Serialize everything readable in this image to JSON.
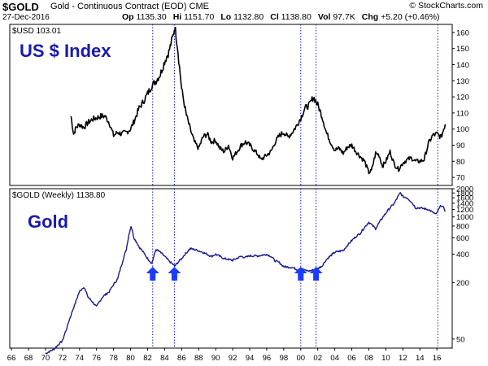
{
  "header": {
    "symbol": "$GOLD",
    "name": "Gold - Continuous Contract (EOD)",
    "exchange": "CME",
    "date": "27-Dec-2016",
    "credit": "© StockCharts.com",
    "quote": {
      "open_label": "Op",
      "open": "1135.30",
      "high_label": "Hi",
      "high": "1151.70",
      "low_label": "Lo",
      "low": "1132.80",
      "close_label": "Cl",
      "close": "1138.80",
      "volume_label": "Vol",
      "volume": "97.7K",
      "change_label": "Chg",
      "change": "+5.20 (+0.46%)"
    }
  },
  "chart_data": [
    {
      "type": "line",
      "title": "$USD 103.01",
      "label": "US $ Index",
      "color": "#000000",
      "ylim": [
        65,
        165
      ],
      "yticks": [
        70,
        80,
        90,
        100,
        110,
        120,
        130,
        140,
        150,
        160
      ],
      "x": [
        1973.0,
        1973.3,
        1973.6,
        1974.0,
        1974.5,
        1975.0,
        1975.5,
        1976.0,
        1976.5,
        1977.0,
        1977.5,
        1978.0,
        1978.5,
        1978.9,
        1979.5,
        1980.0,
        1980.5,
        1981.0,
        1981.5,
        1982.0,
        1982.5,
        1983.0,
        1983.5,
        1984.0,
        1984.5,
        1985.0,
        1985.2,
        1985.5,
        1986.0,
        1986.5,
        1987.0,
        1987.5,
        1988.0,
        1988.5,
        1989.0,
        1989.5,
        1990.0,
        1990.5,
        1991.0,
        1991.5,
        1992.0,
        1992.5,
        1993.0,
        1993.5,
        1994.0,
        1994.5,
        1995.0,
        1995.3,
        1995.8,
        1996.5,
        1997.0,
        1997.5,
        1998.0,
        1998.5,
        1999.0,
        1999.5,
        2000.0,
        2000.5,
        2001.0,
        2001.5,
        2002.0,
        2002.5,
        2003.0,
        2003.5,
        2004.0,
        2004.5,
        2005.0,
        2005.5,
        2006.0,
        2006.5,
        2007.0,
        2007.5,
        2008.0,
        2008.3,
        2008.8,
        2009.2,
        2009.6,
        2010.0,
        2010.5,
        2011.0,
        2011.5,
        2012.0,
        2012.5,
        2013.0,
        2013.5,
        2014.0,
        2014.5,
        2015.0,
        2015.5,
        2016.0,
        2016.5,
        2016.98
      ],
      "values": [
        108,
        97,
        101,
        103,
        101,
        104,
        106,
        107,
        108,
        108,
        104,
        96,
        98,
        97,
        98,
        100,
        106,
        113,
        117,
        122,
        127,
        130,
        134,
        142,
        148,
        158,
        164,
        152,
        125,
        110,
        100,
        92,
        88,
        95,
        97,
        92,
        93,
        88,
        86,
        90,
        82,
        86,
        90,
        92,
        90,
        87,
        84,
        81,
        83,
        86,
        92,
        96,
        98,
        95,
        98,
        102,
        107,
        113,
        115,
        120,
        115,
        108,
        98,
        92,
        87,
        88,
        85,
        89,
        90,
        86,
        83,
        80,
        73,
        74,
        85,
        84,
        77,
        80,
        86,
        78,
        75,
        79,
        81,
        82,
        80,
        80,
        81,
        91,
        96,
        97,
        95,
        103
      ]
    },
    {
      "type": "line",
      "title": "$GOLD (Weekly) 1138.80",
      "label": "Gold",
      "color": "#1a1a8c",
      "yscale": "log",
      "ylim": [
        40,
        2000
      ],
      "yticks": [
        50,
        200,
        400,
        600,
        800,
        1000,
        1200,
        1400,
        1600,
        1800,
        2000
      ],
      "x": [
        1970.0,
        1971.0,
        1972.0,
        1972.5,
        1973.0,
        1973.5,
        1974.0,
        1974.5,
        1975.0,
        1976.0,
        1976.7,
        1977.5,
        1978.5,
        1979.0,
        1979.5,
        1980.05,
        1980.4,
        1981.0,
        1981.5,
        1982.0,
        1982.5,
        1983.0,
        1983.5,
        1984.0,
        1984.5,
        1985.0,
        1985.2,
        1986.0,
        1987.0,
        1987.9,
        1988.5,
        1989.5,
        1990.0,
        1991.0,
        1992.0,
        1993.0,
        1993.5,
        1994.0,
        1995.0,
        1996.0,
        1996.5,
        1997.0,
        1997.5,
        1998.0,
        1999.0,
        1999.6,
        2000.0,
        2000.5,
        2001.0,
        2001.3,
        2001.8,
        2002.5,
        2003.0,
        2004.0,
        2005.0,
        2006.0,
        2006.5,
        2007.0,
        2008.0,
        2008.8,
        2009.5,
        2010.0,
        2011.0,
        2011.7,
        2012.0,
        2012.5,
        2013.0,
        2013.5,
        2014.0,
        2015.0,
        2015.9,
        2016.5,
        2016.8,
        2016.98
      ],
      "values": [
        35,
        39,
        48,
        65,
        90,
        120,
        160,
        180,
        140,
        110,
        140,
        160,
        220,
        320,
        450,
        800,
        600,
        480,
        420,
        360,
        320,
        450,
        420,
        380,
        340,
        310,
        300,
        360,
        460,
        440,
        420,
        380,
        400,
        360,
        345,
        380,
        370,
        385,
        385,
        400,
        380,
        340,
        325,
        295,
        290,
        275,
        285,
        270,
        265,
        270,
        275,
        300,
        350,
        420,
        440,
        560,
        620,
        670,
        880,
        750,
        950,
        1100,
        1400,
        1800,
        1650,
        1600,
        1450,
        1250,
        1250,
        1200,
        1060,
        1330,
        1250,
        1138.8
      ]
    }
  ],
  "x_axis": {
    "xlim": [
      1965.8,
      2017.8
    ],
    "ticks": [
      1966,
      1968,
      1970,
      1972,
      1974,
      1976,
      1978,
      1980,
      1982,
      1984,
      1986,
      1988,
      1990,
      1992,
      1994,
      1996,
      1998,
      2000,
      2002,
      2004,
      2006,
      2008,
      2010,
      2012,
      2014,
      2016
    ],
    "tick_labels": [
      "66",
      "68",
      "70",
      "72",
      "74",
      "76",
      "78",
      "80",
      "82",
      "84",
      "86",
      "88",
      "90",
      "92",
      "94",
      "96",
      "98",
      "00",
      "02",
      "04",
      "06",
      "08",
      "10",
      "12",
      "14",
      "16"
    ]
  },
  "annotations": {
    "vertical_lines": [
      1982.6,
      1985.15,
      2000.0,
      2001.8,
      2016.1
    ],
    "arrows": [
      1982.6,
      1985.15,
      2000.0,
      2001.8
    ],
    "arrow_color": "#1a3cff",
    "line_color": "#1a1acc"
  }
}
